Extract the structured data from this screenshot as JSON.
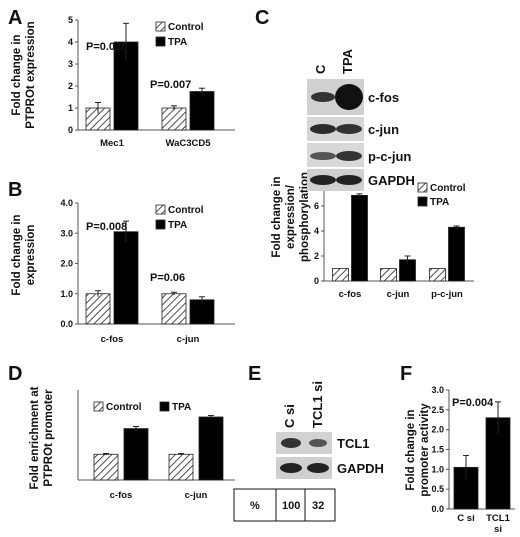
{
  "colors": {
    "control": "hatched",
    "tpa": "#000000",
    "axis": "#555555",
    "blot_bg": "#d4d4d4",
    "band": "#2a2a2a"
  },
  "chart_data": [
    {
      "id": "A",
      "panel_label": "A",
      "type": "bar",
      "ylabel": "Fold change in\nPTPROt expression",
      "ylim": [
        0,
        5
      ],
      "yticks": [
        "0",
        "1",
        "2",
        "3",
        "4",
        "5"
      ],
      "categories": [
        "Mec1",
        "WaC3CD5"
      ],
      "series": [
        {
          "name": "Control",
          "values": [
            1.0,
            1.0
          ],
          "errors": [
            0.25,
            0.1
          ]
        },
        {
          "name": "TPA",
          "values": [
            4.0,
            1.75
          ],
          "errors": [
            0.85,
            0.15
          ]
        }
      ],
      "annotations": [
        {
          "text": "P=0.018",
          "category": 0
        },
        {
          "text": "P=0.007",
          "category": 1
        }
      ],
      "legend": "top-right"
    },
    {
      "id": "B",
      "panel_label": "B",
      "type": "bar",
      "ylabel": "Fold change in\nexpression",
      "ylim": [
        0,
        4
      ],
      "yticks": [
        "0.0",
        "1.0",
        "2.0",
        "3.0",
        "4.0"
      ],
      "categories": [
        "c-fos",
        "c-jun"
      ],
      "series": [
        {
          "name": "Control",
          "values": [
            1.0,
            1.0
          ],
          "errors": [
            0.1,
            0.05
          ]
        },
        {
          "name": "TPA",
          "values": [
            3.05,
            0.8
          ],
          "errors": [
            0.35,
            0.1
          ]
        }
      ],
      "annotations": [
        {
          "text": "P=0.008",
          "category": 0
        },
        {
          "text": "P=0.06",
          "category": 1
        }
      ],
      "legend": "top-right"
    },
    {
      "id": "C",
      "panel_label": "",
      "type": "bar",
      "ylabel": "Fold change in\nexpression/\nphosphorylation",
      "ylim": [
        0,
        8
      ],
      "yticks": [
        "0",
        "2",
        "4",
        "6",
        "8"
      ],
      "categories": [
        "c-fos",
        "c-jun",
        "p-c-jun"
      ],
      "series": [
        {
          "name": "Control",
          "values": [
            1.0,
            1.0,
            1.0
          ],
          "errors": [
            0,
            0,
            0
          ]
        },
        {
          "name": "TPA",
          "values": [
            6.85,
            1.7,
            4.3
          ],
          "errors": [
            0.12,
            0.3,
            0.1
          ]
        }
      ],
      "annotations": [],
      "legend": "top-right"
    },
    {
      "id": "D",
      "panel_label": "D",
      "type": "bar",
      "ylabel": "Fold enrichment at\nPTPROt promoter",
      "ylim": [
        0,
        3.5
      ],
      "yticks": [],
      "categories": [
        "c-fos",
        "c-jun"
      ],
      "series": [
        {
          "name": "Control",
          "values": [
            1.0,
            1.0
          ],
          "errors": [
            0.03,
            0.03
          ]
        },
        {
          "name": "TPA",
          "values": [
            2.0,
            2.45
          ],
          "errors": [
            0.08,
            0.06
          ]
        }
      ],
      "annotations": [],
      "legend": "top"
    },
    {
      "id": "F",
      "panel_label": "F",
      "type": "bar",
      "ylabel": "Fold change in\npromoter activity",
      "ylim": [
        0,
        3
      ],
      "yticks": [
        "0.0",
        "0.5",
        "1.0",
        "1.5",
        "2.0",
        "2.5",
        "3.0"
      ],
      "categories": [
        "C si",
        "TCL1\nsi"
      ],
      "series": [
        {
          "name": "",
          "values": [
            1.05,
            2.3
          ],
          "errors": [
            0.3,
            0.4
          ]
        }
      ],
      "annotations": [
        {
          "text": "P=0.004",
          "category": 0
        }
      ],
      "legend": "none"
    }
  ],
  "blot_c": {
    "panel_label": "C",
    "lanes": [
      "C",
      "TPA"
    ],
    "rows": [
      "c-fos",
      "c-jun",
      "p-c-jun",
      "GAPDH"
    ]
  },
  "blot_e": {
    "panel_label": "E",
    "lanes": [
      "C si",
      "TCL1 si"
    ],
    "rows": [
      "TCL1",
      "GAPDH"
    ],
    "pct_label": "%",
    "pct_values": [
      "100",
      "32"
    ]
  }
}
